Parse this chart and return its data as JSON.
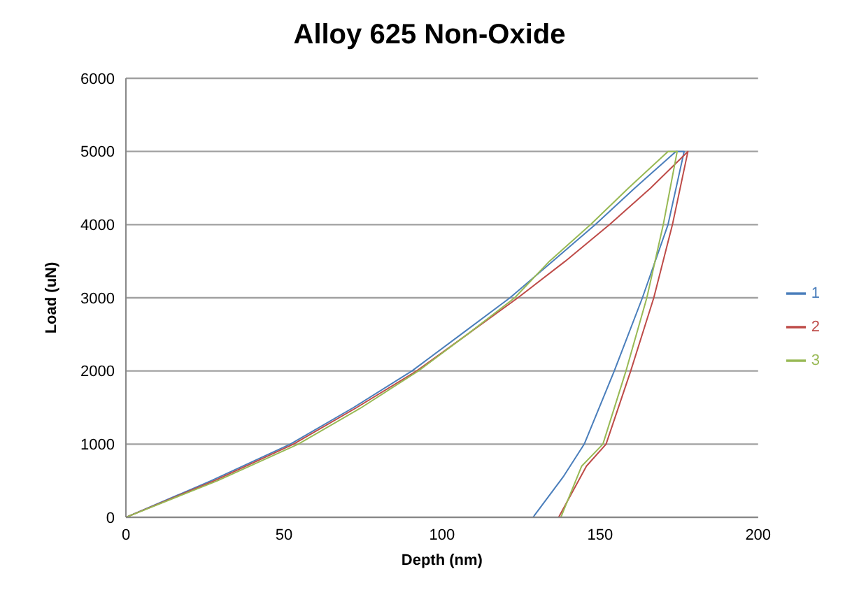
{
  "chart_data": {
    "type": "line",
    "title": "Alloy 625 Non-Oxide",
    "xlabel": "Depth (nm)",
    "ylabel": "Load (uN)",
    "xlim": [
      0,
      200
    ],
    "xticks": [
      0,
      50,
      100,
      150,
      200
    ],
    "ylim": [
      0,
      6000
    ],
    "yticks": [
      0,
      1000,
      2000,
      3000,
      4000,
      5000,
      6000
    ],
    "grid": "y",
    "legend": "right",
    "marker": "none",
    "series": [
      {
        "name": "1",
        "color": "#4a7ebb",
        "x": [
          0,
          27,
          52,
          72,
          90.5,
          106,
          121.5,
          135,
          148.5,
          161,
          174,
          176.6,
          171.5,
          163.4,
          154.5,
          145,
          138.3,
          128.8
        ],
        "values": [
          0,
          500,
          1000,
          1500,
          2000,
          2500,
          3000,
          3500,
          4000,
          4500,
          5000,
          5000,
          4000,
          3000,
          2000,
          1000,
          550,
          0
        ]
      },
      {
        "name": "2",
        "color": "#be4b48",
        "x": [
          0,
          28,
          53,
          73,
          92,
          108,
          124,
          139,
          153,
          166,
          177.8,
          172.9,
          167,
          159.7,
          151.9,
          145.7,
          136.9
        ],
        "values": [
          0,
          500,
          1000,
          1500,
          2000,
          2500,
          3000,
          3500,
          4000,
          4500,
          5000,
          4000,
          3000,
          2000,
          1000,
          700,
          0
        ]
      },
      {
        "name": "3",
        "color": "#98b954",
        "x": [
          0,
          29,
          54.5,
          74.5,
          92.5,
          108,
          123,
          134,
          147,
          159,
          171.5,
          174.4,
          170,
          164.8,
          158.2,
          150.9,
          144.2,
          137.6
        ],
        "values": [
          0,
          500,
          1000,
          1500,
          2000,
          2500,
          3000,
          3500,
          4000,
          4500,
          5000,
          5000,
          4000,
          3000,
          2000,
          1000,
          700,
          0
        ]
      }
    ]
  }
}
